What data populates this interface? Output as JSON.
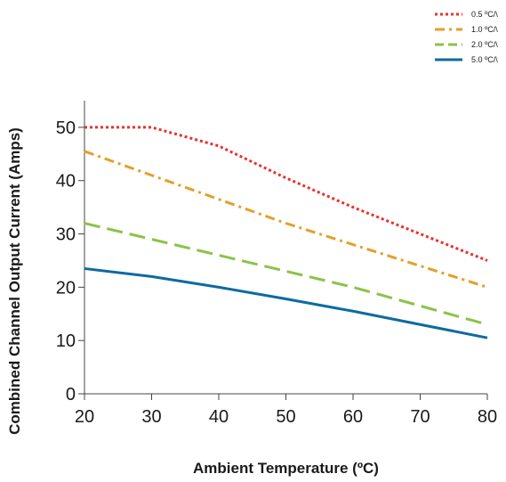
{
  "chart_data": {
    "type": "line",
    "title": "",
    "xlabel": "Ambient Temperature (ºC)",
    "ylabel": "Combined Channel Output Current (Amps)",
    "xlim": [
      20,
      80
    ],
    "ylim": [
      0,
      55
    ],
    "xticks": [
      20,
      30,
      40,
      50,
      60,
      70,
      80
    ],
    "yticks": [
      0,
      10,
      20,
      30,
      40,
      50
    ],
    "grid": false,
    "legend_position": "top-right",
    "x": [
      20,
      30,
      40,
      50,
      60,
      70,
      80
    ],
    "series": [
      {
        "name": "0.5 ºC/\\",
        "color": "#e8332a",
        "dash": "dotted",
        "values": [
          50,
          50,
          46.5,
          40.5,
          35,
          30,
          25
        ]
      },
      {
        "name": "1.0 ºC/\\",
        "color": "#e3a02a",
        "dash": "dash-dot",
        "values": [
          45.5,
          41,
          36.5,
          32,
          28,
          24,
          20
        ]
      },
      {
        "name": "2.0 ºC/\\",
        "color": "#8cc24a",
        "dash": "dashed",
        "values": [
          32,
          29,
          26,
          23,
          20,
          16.5,
          13
        ]
      },
      {
        "name": "5.0 ºC/\\",
        "color": "#0e6aa0",
        "dash": "solid",
        "values": [
          23.5,
          22,
          20,
          17.8,
          15.5,
          13,
          10.5
        ]
      }
    ]
  }
}
